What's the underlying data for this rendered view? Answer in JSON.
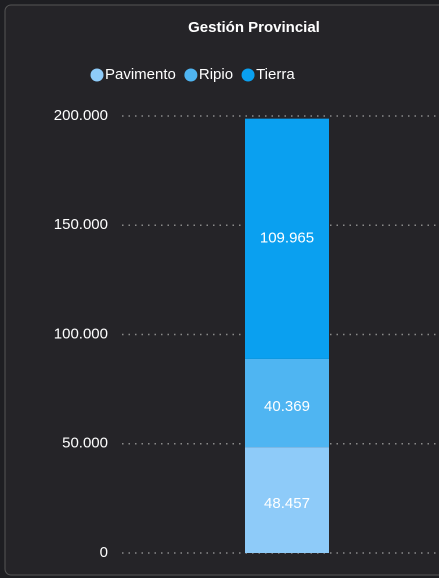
{
  "chart_data": {
    "type": "stacked_bar",
    "title": "Gestión Provincial",
    "categories": [
      null
    ],
    "series": [
      {
        "name": "Pavimento",
        "color": "#8ecbf9",
        "values": [
          48457
        ],
        "value_labels": [
          "48.457"
        ]
      },
      {
        "name": "Ripio",
        "color": "#4fb5f2",
        "values": [
          40369
        ],
        "value_labels": [
          "40.369"
        ]
      },
      {
        "name": "Tierra",
        "color": "#0aa0f0",
        "values": [
          109965
        ],
        "value_labels": [
          "109.965"
        ]
      }
    ],
    "ylim": [
      0,
      200000
    ],
    "yticks": [
      0,
      {
        "value": 50000,
        "label": "50.000"
      },
      {
        "value": 100000,
        "label": "100.000"
      },
      {
        "value": 150000,
        "label": "150.000"
      },
      {
        "value": 200000,
        "label": "200.000"
      }
    ],
    "grid": true,
    "legend": "top"
  }
}
